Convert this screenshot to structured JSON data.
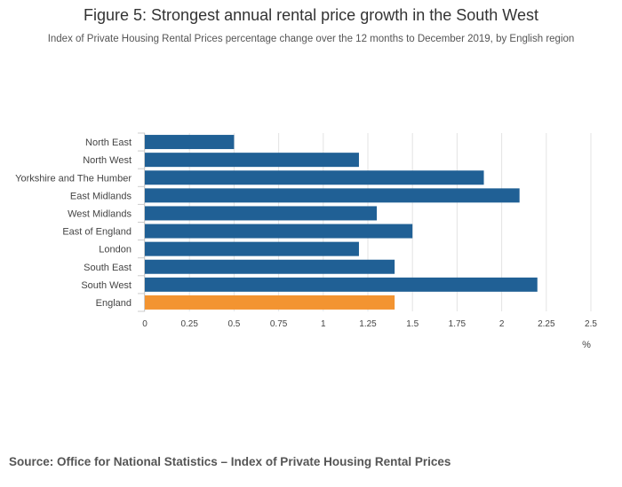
{
  "title": "Figure 5: Strongest annual rental price growth in the South West",
  "subtitle": "Index of Private Housing Rental Prices percentage change over the 12 months to December 2019, by English region",
  "source": "Source: Office for National Statistics – Index of Private Housing Rental Prices",
  "colors": {
    "primary_bar": "#206095",
    "highlight_bar": "#F39431",
    "gridline": "#e3e3e3",
    "axis": "#cccccc"
  },
  "chart_data": {
    "type": "bar",
    "orientation": "horizontal",
    "categories": [
      "North East",
      "North West",
      "Yorkshire and The Humber",
      "East Midlands",
      "West Midlands",
      "East of England",
      "London",
      "South East",
      "South West",
      "England"
    ],
    "values": [
      0.5,
      1.2,
      1.9,
      2.1,
      1.3,
      1.5,
      1.2,
      1.4,
      2.2,
      1.4
    ],
    "highlight": [
      "England"
    ],
    "xlim": [
      0,
      2.5
    ],
    "xticks": [
      "0",
      "0.25",
      "0.5",
      "0.75",
      "1",
      "1.25",
      "1.5",
      "1.75",
      "2",
      "2.25",
      "2.5"
    ],
    "xlabel": "%",
    "ylabel": "",
    "grid": true
  }
}
